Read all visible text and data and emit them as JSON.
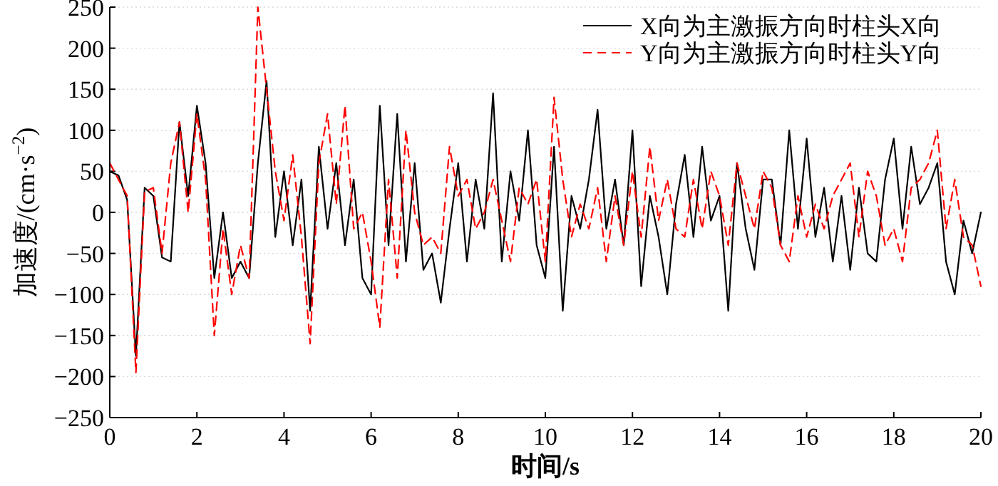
{
  "chart_data": {
    "type": "line",
    "xlabel": "时间/s",
    "ylabel": "加速度/(cm·s$^{−2}$)",
    "x": [
      0,
      0.2,
      0.4,
      0.6,
      0.8,
      1,
      1.2,
      1.4,
      1.6,
      1.8,
      2,
      2.2,
      2.4,
      2.6,
      2.8,
      3,
      3.2,
      3.4,
      3.6,
      3.8,
      4,
      4.2,
      4.4,
      4.6,
      4.8,
      5,
      5.2,
      5.4,
      5.6,
      5.8,
      6,
      6.2,
      6.4,
      6.6,
      6.8,
      7,
      7.2,
      7.4,
      7.6,
      7.8,
      8,
      8.2,
      8.4,
      8.6,
      8.8,
      9,
      9.2,
      9.4,
      9.6,
      9.8,
      10,
      10.2,
      10.4,
      10.6,
      10.8,
      11,
      11.2,
      11.4,
      11.6,
      11.8,
      12,
      12.2,
      12.4,
      12.6,
      12.8,
      13,
      13.2,
      13.4,
      13.6,
      13.8,
      14,
      14.2,
      14.4,
      14.6,
      14.8,
      15,
      15.2,
      15.4,
      15.6,
      15.8,
      16,
      16.2,
      16.4,
      16.6,
      16.8,
      17,
      17.2,
      17.4,
      17.6,
      17.8,
      18,
      18.2,
      18.4,
      18.6,
      18.8,
      19,
      19.2,
      19.4,
      19.6,
      19.8,
      20
    ],
    "series": [
      {
        "name": "X向为主激振方向时柱头X向",
        "color": "#000000",
        "line_style": "solid",
        "values": [
          50,
          45,
          15,
          -175,
          30,
          20,
          -55,
          -60,
          110,
          20,
          130,
          60,
          -80,
          0,
          -80,
          -60,
          -80,
          60,
          160,
          -30,
          50,
          -40,
          40,
          -120,
          80,
          -20,
          60,
          -40,
          40,
          -80,
          -100,
          130,
          -40,
          120,
          -60,
          60,
          -70,
          -50,
          -110,
          -20,
          60,
          -60,
          40,
          -20,
          145,
          -60,
          50,
          -10,
          100,
          -40,
          -80,
          80,
          -120,
          20,
          -20,
          40,
          125,
          -20,
          40,
          -40,
          100,
          -90,
          20,
          -30,
          -100,
          10,
          70,
          -30,
          80,
          -10,
          20,
          -120,
          60,
          -20,
          -70,
          40,
          40,
          -40,
          100,
          -20,
          90,
          -30,
          30,
          -60,
          20,
          -70,
          30,
          -50,
          -60,
          40,
          90,
          -20,
          80,
          10,
          30,
          60,
          -60,
          -100,
          -10,
          -50,
          0
        ]
      },
      {
        "name": "Y向为主激振方向时柱头Y向",
        "color": "#ff0000",
        "line_style": "dashed",
        "values": [
          60,
          40,
          20,
          -195,
          25,
          30,
          -50,
          60,
          110,
          0,
          120,
          40,
          -150,
          -20,
          -100,
          -40,
          -80,
          250,
          150,
          50,
          -10,
          70,
          -30,
          -160,
          60,
          120,
          10,
          130,
          -20,
          0,
          -60,
          -140,
          40,
          -80,
          100,
          0,
          -40,
          -30,
          -50,
          80,
          20,
          40,
          -20,
          0,
          40,
          -10,
          -60,
          30,
          10,
          40,
          -60,
          140,
          40,
          -30,
          10,
          -20,
          30,
          -60,
          20,
          -40,
          50,
          -30,
          80,
          -10,
          40,
          -20,
          -30,
          40,
          -20,
          50,
          20,
          -40,
          60,
          20,
          -20,
          50,
          30,
          -40,
          -60,
          20,
          -30,
          10,
          -20,
          20,
          40,
          60,
          -30,
          50,
          20,
          -40,
          -20,
          -60,
          30,
          40,
          60,
          100,
          -20,
          40,
          -30,
          -40,
          -90
        ]
      }
    ],
    "xlim": [
      0,
      20
    ],
    "xticks": [
      0,
      2,
      4,
      6,
      8,
      10,
      12,
      14,
      16,
      18,
      20
    ],
    "ylim": [
      -250,
      250
    ],
    "yticks": [
      -250,
      -200,
      -150,
      -100,
      -50,
      0,
      50,
      100,
      150,
      200,
      250
    ],
    "grid": "y",
    "legend": "top right"
  }
}
